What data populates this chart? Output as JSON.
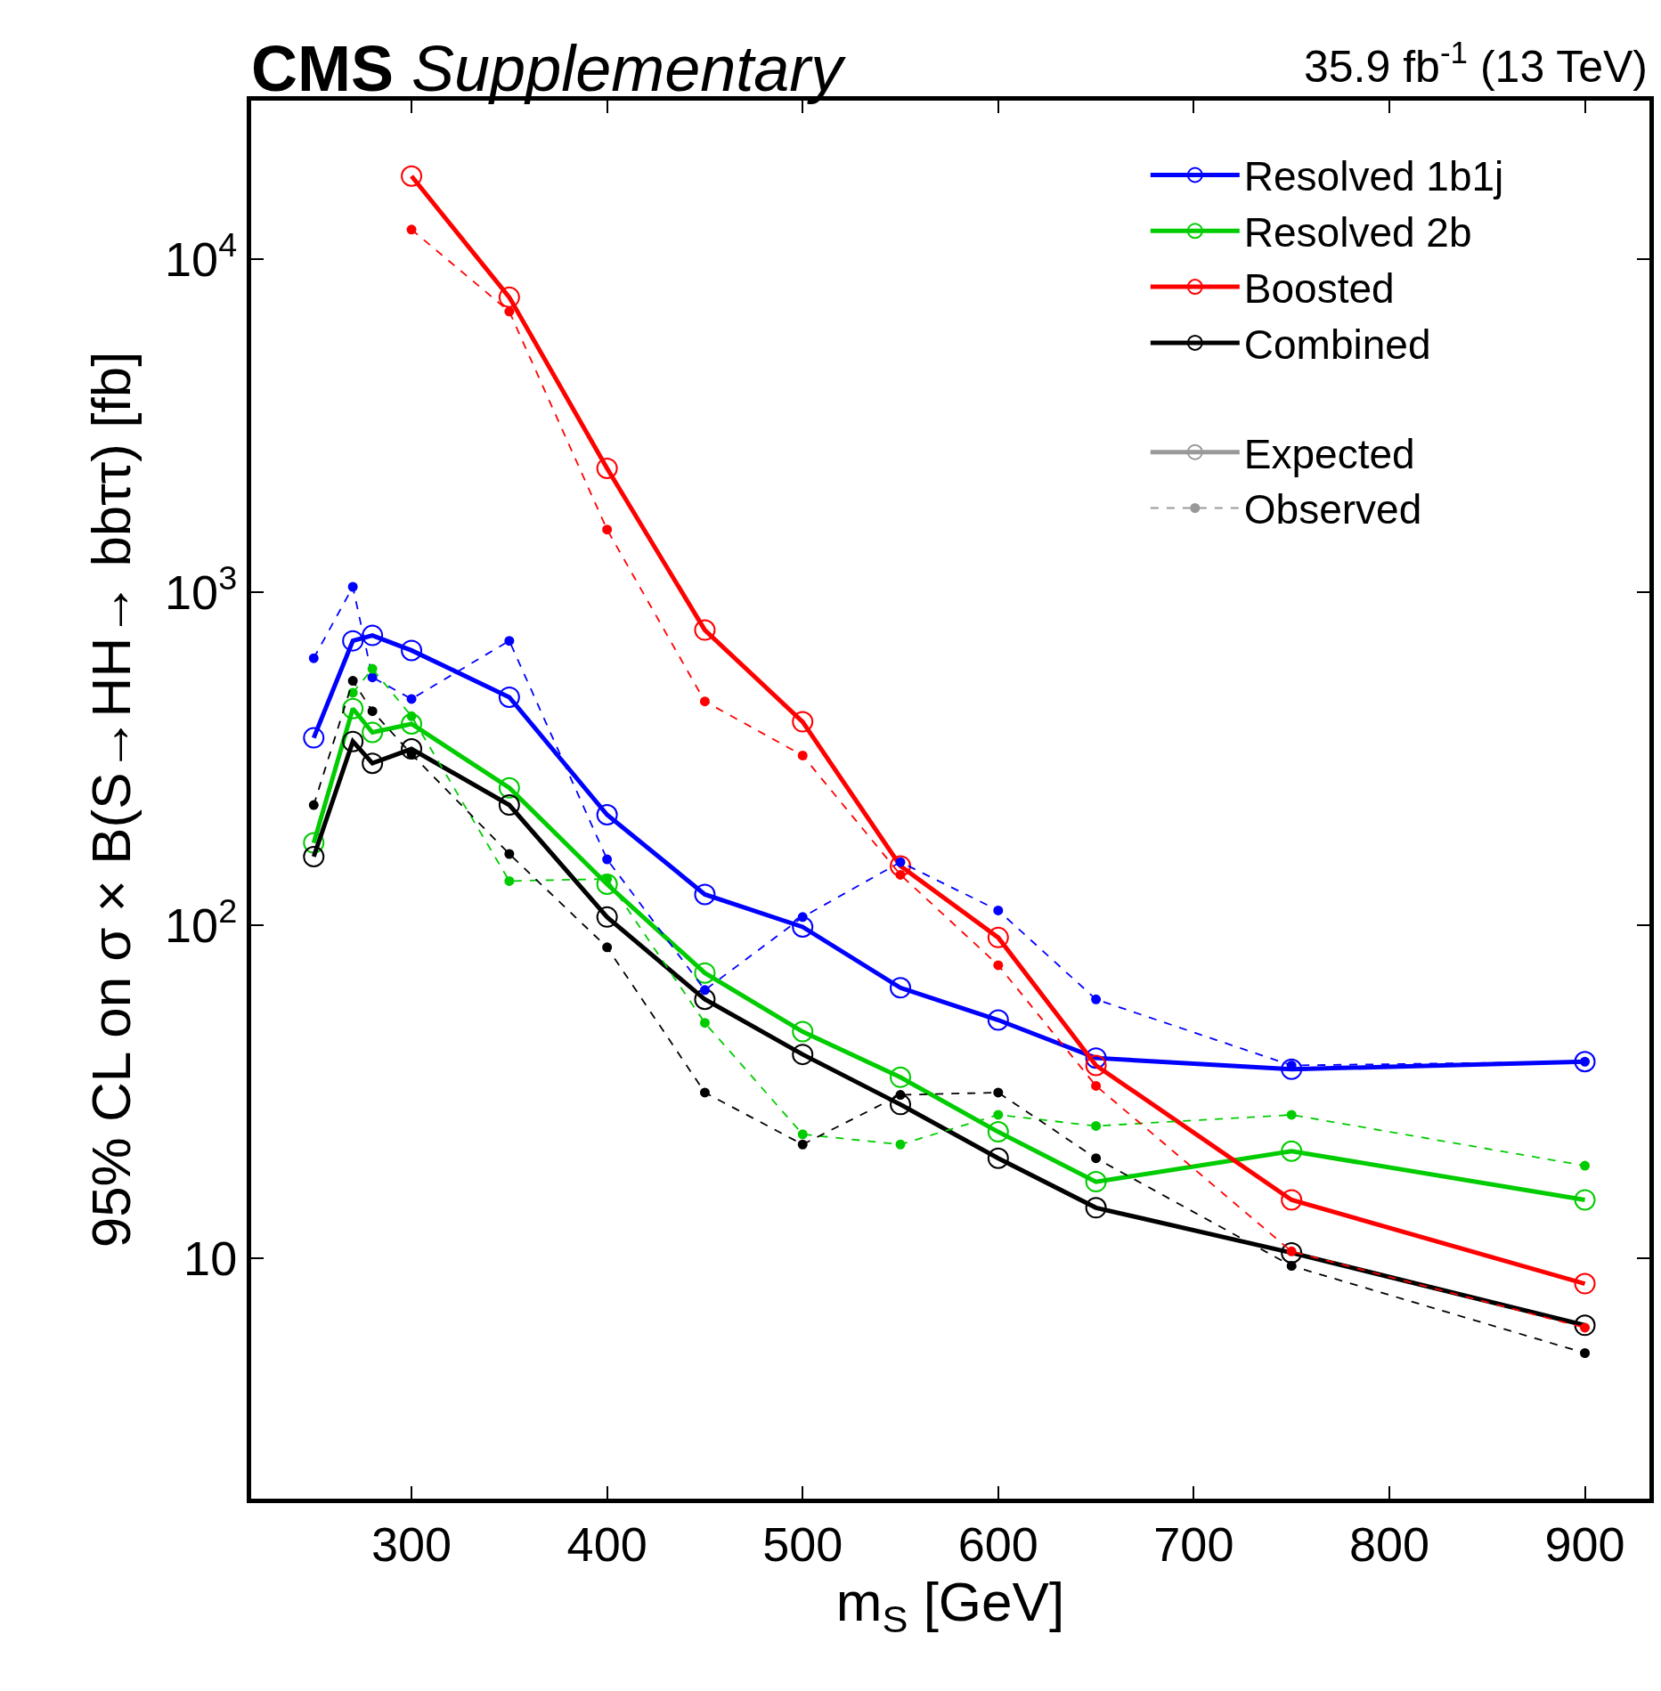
{
  "chart_data": {
    "type": "line",
    "title": "CMS",
    "subtitle": "Supplementary",
    "xlabel": "m$_{S}$ [GeV]",
    "ylabel": "95% CL on σ × B(S→HH→ bbττ) [fb]",
    "annotations": [
      "35.9 fb$^{-1}$ (13 TeV)"
    ],
    "x": [
      250,
      270,
      280,
      300,
      350,
      400,
      450,
      500,
      550,
      600,
      650,
      750,
      900
    ],
    "series": [
      {
        "name": "Resolved 1b1j",
        "color": "#0000ff",
        "line_style": "solid",
        "marker": "circle",
        "values": [
          366,
          716,
          743,
          670,
          485,
          215,
          124,
          99,
          65,
          52,
          40,
          37,
          39
        ]
      },
      {
        "name": "Resolved 2b",
        "color": "#00cc00",
        "line_style": "solid",
        "marker": "circle",
        "values": [
          177,
          448,
          380,
          403,
          259,
          133,
          72,
          48,
          35,
          24,
          17,
          21,
          15
        ]
      },
      {
        "name": "Boosted",
        "color": "#ff0000",
        "line_style": "solid",
        "marker": "circle",
        "values": [
          null,
          null,
          null,
          17800,
          7700,
          2360,
          771,
          409,
          151,
          92,
          38,
          15,
          8.4
        ]
      },
      {
        "name": "Combined",
        "color": "#000000",
        "line_style": "solid",
        "marker": "circle",
        "values": [
          161,
          357,
          307,
          339,
          230,
          106,
          60,
          41,
          29,
          20,
          14.2,
          10.4,
          6.3
        ]
      },
      {
        "color": "#0000ff",
        "line_style": "dashed",
        "marker": "circle",
        "values": [
          635,
          1040,
          556,
          479,
          716,
          158,
          64,
          106,
          155,
          111,
          60,
          38,
          39
        ]
      },
      {
        "color": "#00cc00",
        "line_style": "dashed",
        "marker": "circle",
        "values": [
          null,
          500,
          590,
          425,
          136,
          138,
          51,
          23.6,
          22,
          27,
          25,
          27,
          19
        ]
      },
      {
        "color": "#ff0000",
        "line_style": "dashed",
        "marker": "circle",
        "values": [
          null,
          null,
          null,
          12300,
          6980,
          1545,
          471,
          324,
          142,
          76,
          33,
          10.5,
          6.2
        ]
      },
      {
        "color": "#000000",
        "line_style": "dashed",
        "marker": "circle",
        "values": [
          230,
          543,
          440,
          327,
          164,
          86,
          31.5,
          22,
          31,
          31.5,
          20,
          9.5,
          5.2
        ]
      },
      {
        "name": "Expected",
        "color": "#999999",
        "line_style": "solid",
        "marker": "circle",
        "values": [
          null,
          null,
          null,
          null,
          null,
          null,
          null,
          null,
          null,
          null,
          null,
          null,
          null
        ]
      },
      {
        "name": "Observed",
        "color": "#999999",
        "line_style": "dashed",
        "marker": "circle",
        "values": [
          null,
          null,
          null,
          null,
          null,
          null,
          null,
          null,
          null,
          null,
          null,
          null,
          null
        ]
      }
    ],
    "log": "y",
    "legend": "top right",
    "xlim": [
      218,
      933
    ],
    "xticks": [
      300,
      400,
      500,
      600,
      700,
      800,
      900
    ],
    "ylim": [
      1.9,
      30000
    ],
    "yticks": [
      10,
      {
        "value": 100,
        "label": "10$^{2}$"
      },
      {
        "value": 1000,
        "label": "10$^{3}$"
      },
      {
        "value": 10000,
        "label": "10$^{4}$"
      }
    ]
  }
}
